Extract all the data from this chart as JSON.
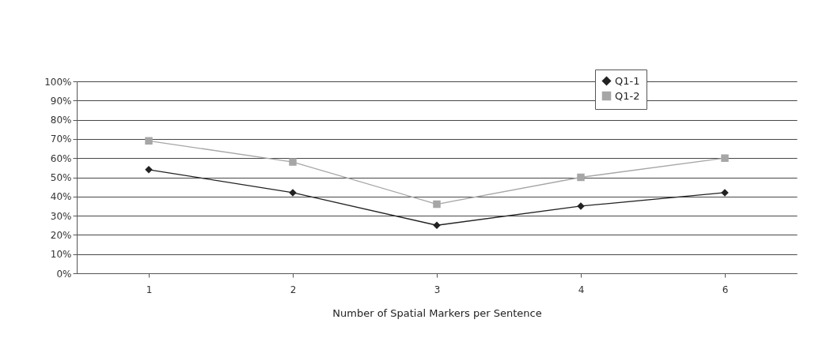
{
  "chart_data": {
    "type": "line",
    "xlabel": "Number of Spatial Markers per Sentence",
    "categories": [
      "1",
      "2",
      "3",
      "4",
      "6"
    ],
    "series": [
      {
        "name": "Q1-1",
        "color": "#222222",
        "marker": "diamond",
        "values": [
          54,
          42,
          25,
          35,
          42
        ]
      },
      {
        "name": "Q1-2",
        "color": "#a6a6a6",
        "marker": "square",
        "values": [
          69,
          58,
          36,
          50,
          60
        ]
      }
    ],
    "ylim": [
      0,
      100
    ],
    "yticks": [
      {
        "value": 0,
        "label": "0%"
      },
      {
        "value": 10,
        "label": "10%"
      },
      {
        "value": 20,
        "label": "20%"
      },
      {
        "value": 30,
        "label": "30%"
      },
      {
        "value": 40,
        "label": "40%"
      },
      {
        "value": 50,
        "label": "50%"
      },
      {
        "value": 60,
        "label": "60%"
      },
      {
        "value": 70,
        "label": "70%"
      },
      {
        "value": 80,
        "label": "80%"
      },
      {
        "value": 90,
        "label": "90%"
      },
      {
        "value": 100,
        "label": "100%"
      }
    ],
    "grid": "y",
    "legend": "top right"
  }
}
